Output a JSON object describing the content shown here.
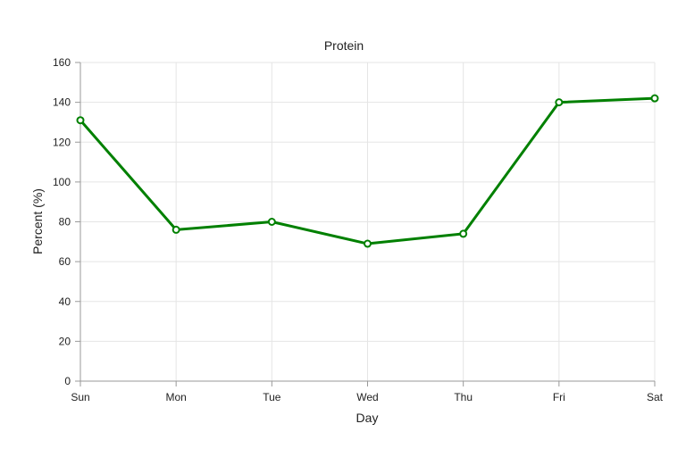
{
  "chart_data": {
    "type": "line",
    "title": "Protein",
    "xlabel": "Day",
    "ylabel": "Percent (%)",
    "categories": [
      "Sun",
      "Mon",
      "Tue",
      "Wed",
      "Thu",
      "Fri",
      "Sat"
    ],
    "series": [
      {
        "values": [
          131,
          76,
          80,
          69,
          74,
          140,
          142
        ],
        "color": "#008000"
      }
    ],
    "ylim": [
      0,
      160
    ],
    "yticks": [
      0,
      20,
      40,
      60,
      80,
      100,
      120,
      140,
      160
    ],
    "grid": true,
    "legend": "none"
  }
}
